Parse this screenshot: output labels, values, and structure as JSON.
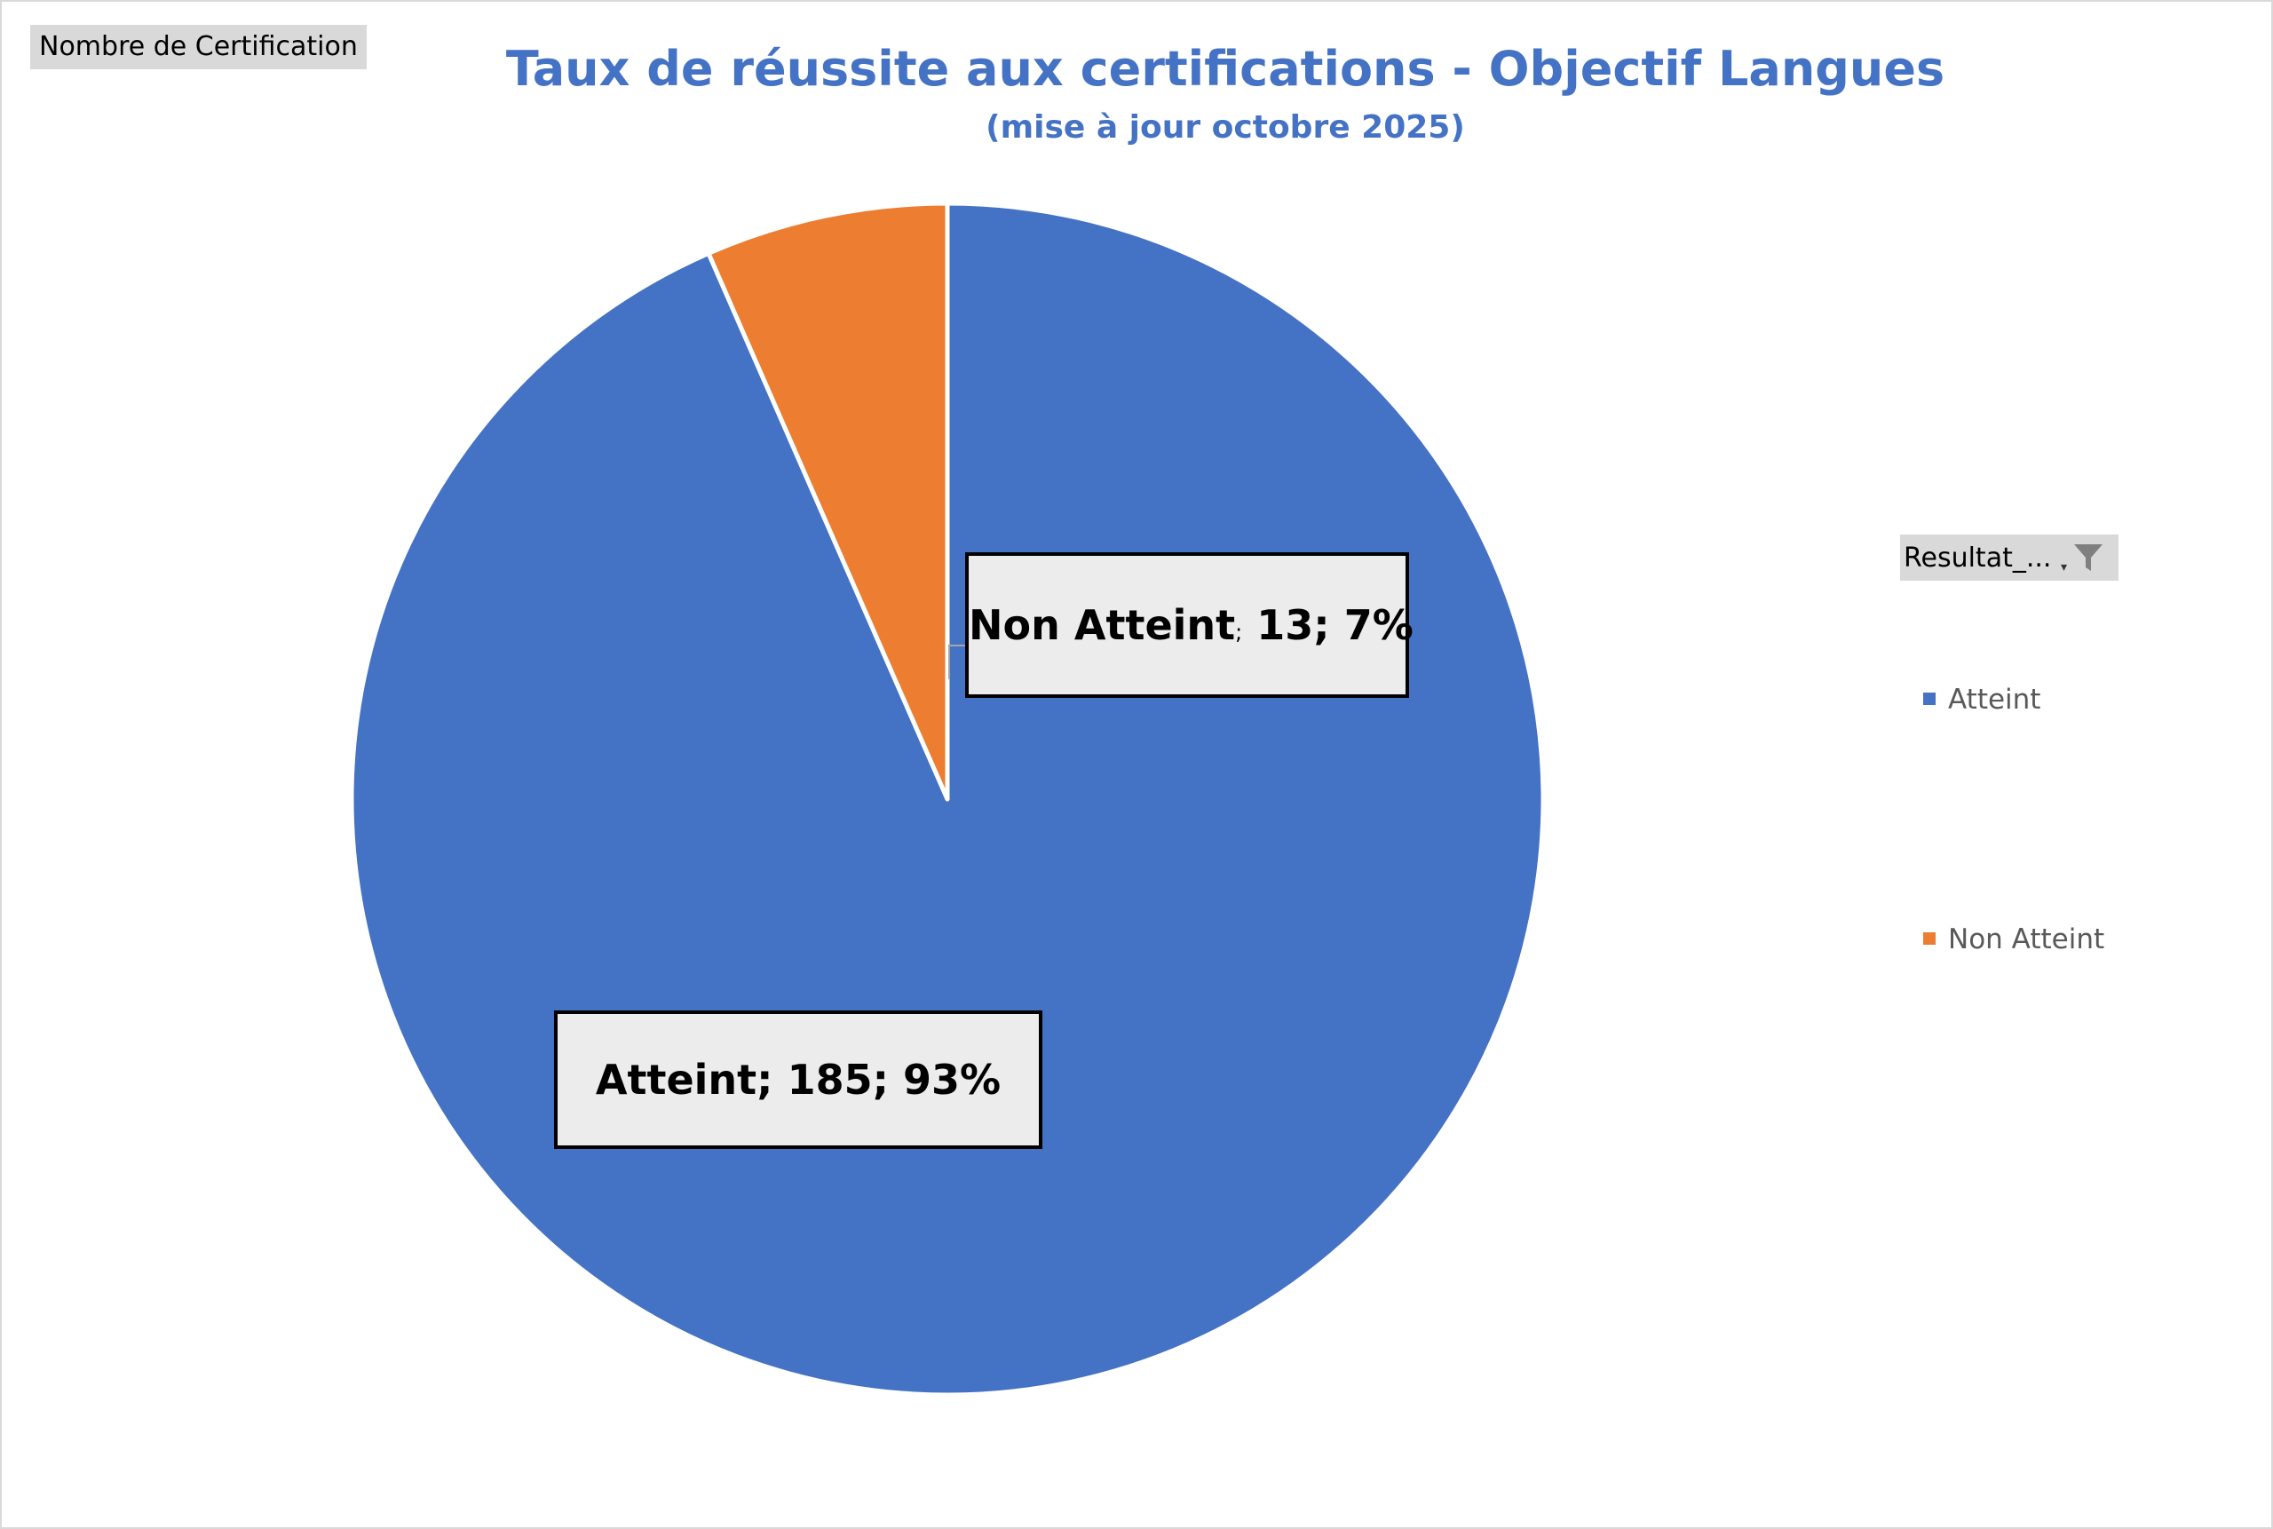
{
  "header": {
    "values_field": "Nombre de Certification",
    "filter_field": "Resultat_..."
  },
  "chart_data": {
    "type": "pie",
    "title": "Taux de réussite aux certifications - Objectif Langues",
    "subtitle": "(mise à jour  octobre 2025)",
    "categories": [
      "Atteint",
      "Non Atteint"
    ],
    "values": [
      185,
      13
    ],
    "percentages": [
      93,
      7
    ],
    "colors": [
      "#4472c4",
      "#ed7d31"
    ],
    "data_labels": [
      {
        "category": "Atteint",
        "value": "185",
        "percent": "93%"
      },
      {
        "category": "Non Atteint",
        "value": "13",
        "percent": "7%"
      }
    ],
    "legend": {
      "position": "right",
      "entries": [
        "Atteint",
        "Non Atteint"
      ]
    }
  }
}
